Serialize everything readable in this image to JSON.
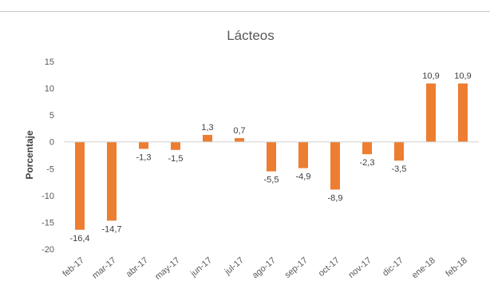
{
  "chart_data": {
    "type": "bar",
    "title": "Lácteos",
    "xlabel": "",
    "ylabel": "Porcentaje",
    "ylim": [
      -20,
      15
    ],
    "yticks": [
      15,
      10,
      5,
      0,
      -5,
      -10,
      -15,
      -20
    ],
    "ytick_labels": [
      "15",
      "10",
      "5",
      "0",
      "-5",
      "-10",
      "-15",
      "-20"
    ],
    "grid": false,
    "legend": "none",
    "bar_color": "#ED7D31",
    "categories": [
      "feb-17",
      "mar-17",
      "abr-17",
      "may-17",
      "jun-17",
      "jul-17",
      "ago-17",
      "sep-17",
      "oct-17",
      "nov-17",
      "dic-17",
      "ene-18",
      "feb-18"
    ],
    "values": [
      -16.4,
      -14.7,
      -1.3,
      -1.5,
      1.3,
      0.7,
      -5.5,
      -4.9,
      -8.9,
      -2.3,
      -3.5,
      10.9,
      10.9
    ],
    "value_labels": [
      "-16,4",
      "-14,7",
      "-1,3",
      "-1,5",
      "1,3",
      "0,7",
      "-5,5",
      "-4,9",
      "-8,9",
      "-2,3",
      "-3,5",
      "10,9",
      "10,9"
    ]
  }
}
